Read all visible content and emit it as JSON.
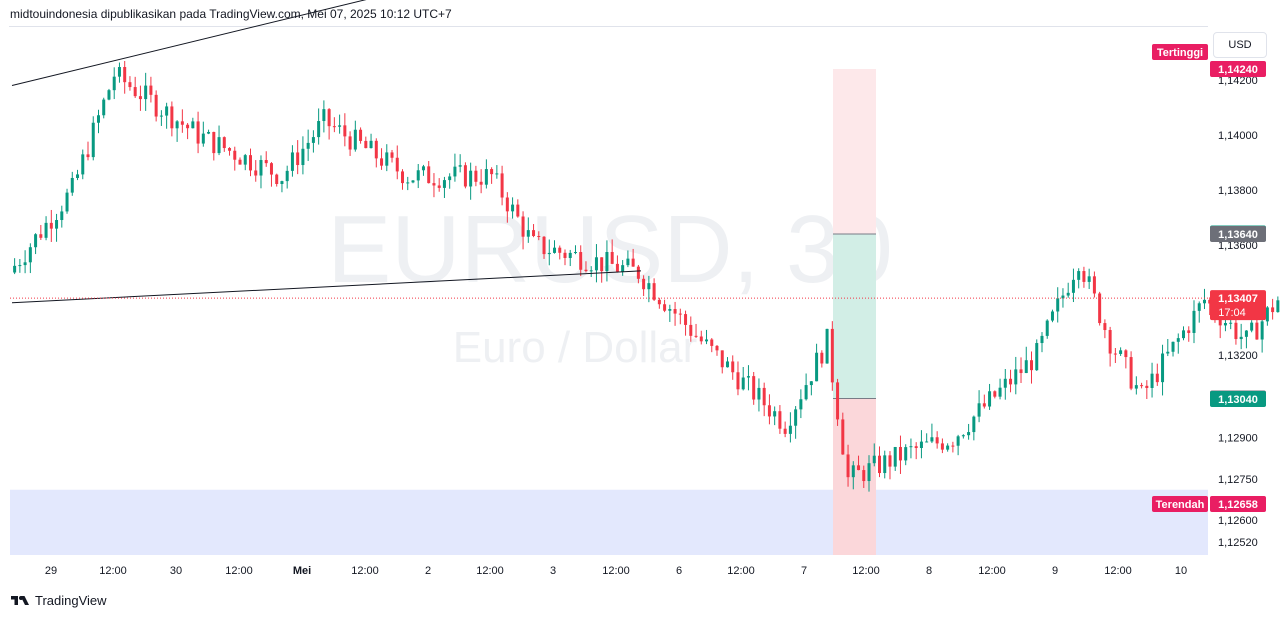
{
  "header": {
    "text": "midtouindonesia dipublikasikan pada TradingView.com, Mei 07, 2025 10:12 UTC+7"
  },
  "footer": {
    "brand": "TradingView"
  },
  "watermark": {
    "symbol": "EURUSD, 30",
    "name": "Euro / Dollar"
  },
  "currency_label": "USD",
  "colors": {
    "up": "#089981",
    "down": "#f23645",
    "zone": "#e3e8fd",
    "target_zone": "#d2eee6",
    "stop_zone": "#fbd7da",
    "stop_zone_light": "#fde8ea",
    "grey_tag": "#6d6f78",
    "last_price": "#f23645",
    "high_low_tag": "#e91e63"
  },
  "chart_data": {
    "type": "candlestick",
    "symbol": "EURUSD",
    "interval": "30",
    "y_ticks": [
      "1,14200",
      "1,14000",
      "1,13800",
      "1,13600",
      "1,13200",
      "1,12900",
      "1,12750",
      "1,12600",
      "1,12520"
    ],
    "x_ticks": [
      "29",
      "12:00",
      "30",
      "12:00",
      "Mei",
      "12:00",
      "2",
      "12:00",
      "3",
      "12:00",
      "6",
      "12:00",
      "7",
      "12:00",
      "8",
      "12:00",
      "9",
      "12:00",
      "10"
    ],
    "price_tags": {
      "highest_label": "Tertinggi",
      "highest_value": "1,14240",
      "lowest_label": "Terendah",
      "lowest_value": "1,12658",
      "last_price": "1,13407",
      "countdown": "17:04",
      "target_upper": "1,13642",
      "entry_upper": "1,13640",
      "entry_lower": "1,13042",
      "target_lower": "1,13040"
    },
    "levels": {
      "highest": 1.1424,
      "lowest": 1.12658,
      "last": 1.13407,
      "position_top": 1.1364,
      "position_bottom": 1.13042,
      "demand_zone_top": 1.1271
    },
    "trendlines": [
      {
        "from": [
          "28 Apr 18:00",
          1.1418
        ],
        "to": [
          "30 Apr 06:00",
          1.14513
        ]
      },
      {
        "from": [
          "28 Apr 18:00",
          1.1339
        ],
        "to": [
          "1 Mei 06:00",
          1.13506
        ]
      }
    ],
    "ohlc_key_points": [
      {
        "t": "28 Apr 18:00",
        "c": 1.135
      },
      {
        "t": "29 Apr 00:00",
        "c": 1.138
      },
      {
        "t": "29 Apr 04:00",
        "c": 1.1422
      },
      {
        "t": "29 Apr 12:00",
        "c": 1.14
      },
      {
        "t": "29 Apr 20:00",
        "c": 1.1385
      },
      {
        "t": "30 Apr 00:00",
        "c": 1.1405
      },
      {
        "t": "30 Apr 08:00",
        "c": 1.1385
      },
      {
        "t": "30 Apr 16:00",
        "c": 1.1385
      },
      {
        "t": "30 Apr 20:00",
        "c": 1.136
      },
      {
        "t": "1 Mei 06:00",
        "c": 1.135
      },
      {
        "t": "1 Mei 12:00",
        "c": 1.1325
      },
      {
        "t": "1 Mei 20:00",
        "c": 1.1295
      },
      {
        "t": "2 Mei 00:00",
        "c": 1.1325
      },
      {
        "t": "2 Mei 02:00",
        "c": 1.1275
      },
      {
        "t": "2 Mei 08:00",
        "c": 1.1285
      },
      {
        "t": "2 Mei 12:00",
        "c": 1.129
      },
      {
        "t": "2 Mei 20:00",
        "c": 1.132
      },
      {
        "t": "3 Mei 00:00",
        "c": 1.1355
      },
      {
        "t": "3 Mei 03:00",
        "c": 1.1325
      },
      {
        "t": "3 Mei 06:00",
        "c": 1.1305
      },
      {
        "t": "3 Mei 12:00",
        "c": 1.134
      },
      {
        "t": "3 Mei 16:00",
        "c": 1.1325
      },
      {
        "t": "3 Mei 22:00",
        "c": 1.1355
      },
      {
        "t": "6 Mei 00:00",
        "c": 1.134
      },
      {
        "t": "6 Mei 04:00",
        "c": 1.1305
      },
      {
        "t": "6 Mei 12:00",
        "c": 1.1295
      },
      {
        "t": "6 Mei 18:00",
        "c": 1.134
      },
      {
        "t": "6 Mei 22:00",
        "c": 1.1365
      },
      {
        "t": "7 Mei 02:00",
        "c": 1.1382
      },
      {
        "t": "7 Mei 04:30",
        "c": 1.1333
      },
      {
        "t": "7 Mei 09:30",
        "c": 1.13407
      }
    ]
  }
}
